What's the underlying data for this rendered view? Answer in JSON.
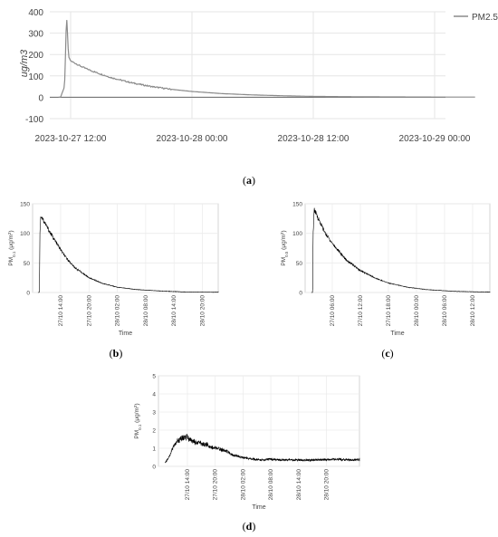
{
  "chart_data": [
    {
      "type": "line",
      "panel": "(a)",
      "ylabel": "ug/m3",
      "xlabel": "",
      "ylim": [
        -100,
        400
      ],
      "yticks": [
        "400",
        "300",
        "200",
        "100",
        "0",
        "-100"
      ],
      "xticks": [
        "2023-10-27 12:00",
        "2023-10-28 00:00",
        "2023-10-28 12:00",
        "2023-10-29 00:00"
      ],
      "grid": true,
      "legend_position": "top-right",
      "series": [
        {
          "name": "PM2.5",
          "x_hours_from_first_tick": [
            -1.2,
            -1.0,
            -0.6,
            -0.4,
            -0.2,
            0.0,
            0.5,
            1,
            2,
            3,
            4,
            6,
            8,
            10,
            12,
            15,
            18,
            21,
            24,
            27,
            30,
            36,
            40
          ],
          "values": [
            0,
            0,
            50,
            385,
            190,
            170,
            158,
            145,
            125,
            108,
            92,
            68,
            50,
            37,
            27,
            17,
            11,
            7,
            4,
            3,
            2,
            1,
            1
          ]
        }
      ],
      "color": "#8a8a8a"
    },
    {
      "type": "line",
      "panel": "(b)",
      "ylabel_main": "PM",
      "ylabel_sub": "0.1",
      "ylabel_unit": "(μg/m",
      "ylabel_sup": "3",
      "ylabel_end": ")",
      "xlabel": "Time",
      "ylim": [
        0,
        150
      ],
      "yticks": [
        "150",
        "100",
        "50",
        "0"
      ],
      "xticks": [
        "27/10 14:00",
        "27/10 20:00",
        "28/10 02:00",
        "28/10 08:00",
        "28/10 14:00",
        "28/10 20:00"
      ],
      "series": [
        {
          "x_hours_from_first_tick": [
            -4.8,
            -4.5,
            -4.4,
            -4.2,
            -3.5,
            -2.5,
            -1,
            1,
            3,
            6,
            9,
            12,
            16,
            20,
            26,
            32,
            38,
            42
          ],
          "values": [
            0,
            0,
            100,
            130,
            120,
            105,
            85,
            60,
            42,
            25,
            15,
            9,
            5,
            3,
            1,
            0.5,
            0.2,
            0.1
          ]
        }
      ]
    },
    {
      "type": "line",
      "panel": "(c)",
      "ylabel_main": "PM",
      "ylabel_sub": "0.5",
      "ylabel_unit": "(μg/m",
      "ylabel_sup": "3",
      "ylabel_end": ")",
      "xlabel": "Time",
      "ylim": [
        0,
        150
      ],
      "yticks": [
        "150",
        "100",
        "50",
        "0"
      ],
      "xticks": [
        "27/10 06:00",
        "27/10 12:00",
        "27/10 18:00",
        "28/10 00:00",
        "28/10 06:00",
        "28/10 12:00"
      ],
      "series": [
        {
          "x_hours_from_first_tick": [
            -4.5,
            -4.2,
            -4.1,
            -3.9,
            -3,
            -1.5,
            0.5,
            3,
            6,
            9,
            12,
            16,
            20,
            26,
            32,
            38,
            42
          ],
          "values": [
            0,
            0,
            100,
            140,
            125,
            100,
            78,
            55,
            37,
            25,
            16,
            9,
            5,
            2,
            1,
            0.4,
            0.2
          ]
        }
      ]
    },
    {
      "type": "line",
      "panel": "(d)",
      "ylabel_main": "PM",
      "ylabel_sub": "0.1",
      "ylabel_unit": "(μg/m",
      "ylabel_sup": "3",
      "ylabel_end": ")",
      "xlabel": "Time",
      "ylim": [
        0,
        5
      ],
      "yticks": [
        "5",
        "4",
        "3",
        "2",
        "1",
        "0"
      ],
      "xticks": [
        "27/10 14:00",
        "27/10 20:00",
        "28/10 02:00",
        "28/10 08:00",
        "28/10 14:00",
        "28/10 20:00"
      ],
      "series": [
        {
          "x_hours_from_first_tick": [
            -4.8,
            -4.0,
            -3.0,
            -2.0,
            -1.0,
            0,
            1,
            2,
            4,
            6,
            8,
            10,
            12,
            14,
            16,
            18,
            20,
            24,
            28,
            32,
            36,
            40,
            42
          ],
          "values": [
            0.2,
            0.5,
            1.1,
            1.4,
            1.6,
            1.6,
            1.4,
            1.3,
            1.2,
            1.0,
            0.9,
            0.6,
            0.5,
            0.4,
            0.35,
            0.4,
            0.35,
            0.35,
            0.35,
            0.4,
            0.35,
            0.4,
            0.35
          ]
        }
      ]
    }
  ],
  "captions": [
    "(a)",
    "(b)",
    "(c)",
    "(d)"
  ]
}
